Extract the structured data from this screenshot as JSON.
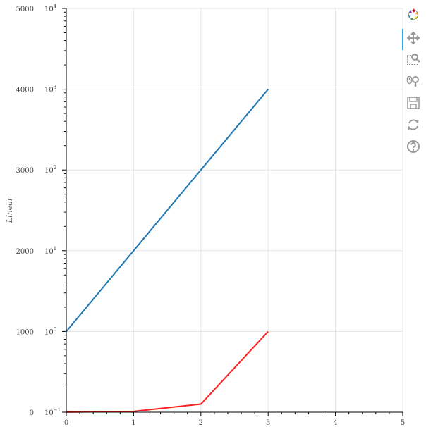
{
  "chart_data": {
    "type": "line",
    "ylabel": "Linear",
    "xlim": [
      0,
      5
    ],
    "ylim_linear": [
      0,
      5000
    ],
    "ylim_log": [
      0.1,
      10000
    ],
    "x_ticks": [
      "0",
      "1",
      "2",
      "3",
      "4",
      "5"
    ],
    "y_ticks_linear": [
      "0",
      "1000",
      "2000",
      "3000",
      "4000",
      "5000"
    ],
    "y_ticks_log": [
      {
        "base": "10",
        "exp": "−1"
      },
      {
        "base": "10",
        "exp": "0"
      },
      {
        "base": "10",
        "exp": "1"
      },
      {
        "base": "10",
        "exp": "2"
      },
      {
        "base": "10",
        "exp": "3"
      },
      {
        "base": "10",
        "exp": "4"
      }
    ],
    "grid": true,
    "series": [
      {
        "color": "#1f77b4",
        "axis": "log",
        "x": [
          0,
          1,
          2,
          3
        ],
        "y": [
          1,
          10,
          100,
          1000
        ]
      },
      {
        "color": "#ff2020",
        "axis": "linear",
        "x": [
          0,
          1,
          2,
          3
        ],
        "y": [
          1,
          10,
          100,
          1000
        ]
      }
    ]
  },
  "toolbar": {
    "tools": [
      "bokeh-logo-icon",
      "pan-icon",
      "box-zoom-icon",
      "wheel-zoom-icon",
      "save-icon",
      "reset-icon",
      "help-icon"
    ],
    "active_tool": "pan-icon"
  }
}
